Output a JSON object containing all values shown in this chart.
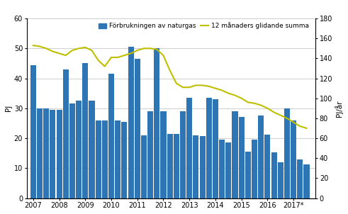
{
  "ylabel_left": "PJ",
  "ylabel_right": "PJ/år",
  "bar_label": "Förbrukningen av naturgas",
  "line_label": "12 månaders glidande summa",
  "bar_color": "#2E75B6",
  "line_color": "#BFBF00",
  "background_color": "#ffffff",
  "grid_color": "#bbbbbb",
  "ylim_left": [
    0,
    60
  ],
  "ylim_right": [
    0,
    180
  ],
  "yticks_left": [
    0,
    10,
    20,
    30,
    40,
    50,
    60
  ],
  "yticks_right": [
    0,
    20,
    40,
    60,
    80,
    100,
    120,
    140,
    160,
    180
  ],
  "bar_data": [
    44.5,
    30.0,
    30.0,
    29.5,
    29.5,
    43.0,
    31.5,
    32.5,
    45.0,
    32.5,
    26.0,
    26.0,
    41.5,
    26.0,
    25.5,
    50.5,
    46.5,
    21.0,
    29.0,
    50.0,
    29.0,
    21.5,
    21.5,
    29.0,
    33.5,
    21.0,
    20.8,
    33.5,
    33.0,
    19.5,
    18.7,
    29.0,
    27.0,
    15.6,
    19.5,
    27.5,
    21.3,
    15.2,
    12.0,
    30.0,
    26.0,
    13.0,
    11.2
  ],
  "line_x_vals": [
    2007.0,
    2007.25,
    2007.5,
    2007.75,
    2008.0,
    2008.25,
    2008.5,
    2008.75,
    2009.0,
    2009.25,
    2009.5,
    2009.75,
    2010.0,
    2010.25,
    2010.5,
    2010.75,
    2011.0,
    2011.25,
    2011.5,
    2011.75,
    2012.0,
    2012.25,
    2012.5,
    2012.75,
    2013.0,
    2013.25,
    2013.5,
    2013.75,
    2014.0,
    2014.25,
    2014.5,
    2014.75,
    2015.0,
    2015.25,
    2015.5,
    2015.75,
    2016.0,
    2016.25,
    2016.5,
    2016.75,
    2017.0,
    2017.25,
    2017.5
  ],
  "line_y_vals": [
    153,
    152,
    150,
    147,
    145,
    143,
    148,
    150,
    151,
    148,
    138,
    132,
    141,
    141,
    143,
    145,
    148,
    150,
    150,
    149,
    143,
    128,
    115,
    111,
    111,
    113,
    113,
    112,
    110,
    108,
    105,
    103,
    100,
    96,
    95,
    93,
    90,
    86,
    83,
    80,
    76,
    72,
    70
  ],
  "xtick_positions": [
    2007,
    2008,
    2009,
    2010,
    2011,
    2012,
    2013,
    2014,
    2015,
    2016,
    2017
  ],
  "xtick_labels": [
    "2007",
    "2008",
    "2009",
    "2010",
    "2011",
    "2012",
    "2013",
    "2014",
    "2015",
    "2016",
    "2017*"
  ],
  "xlim": [
    2006.75,
    2017.85
  ],
  "bar_width": 0.22
}
